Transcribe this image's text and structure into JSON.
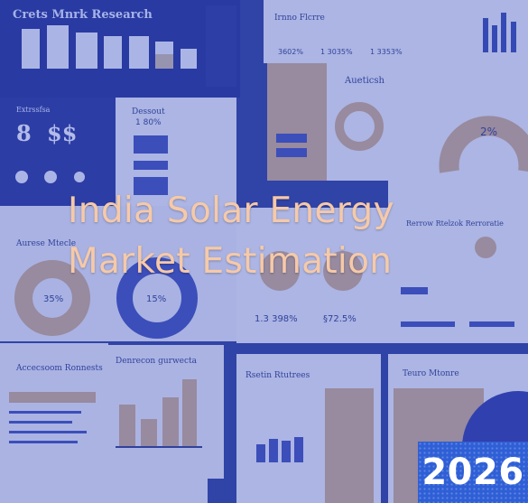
{
  "cover": {
    "title_line1": "India Solar Energy",
    "title_line2": "Market Estimation",
    "year": "2026"
  },
  "background_labels": {
    "panel1_title": "Crets Mnrk Research",
    "panel2_title": "Irnno Flcrre",
    "panel2_stats": [
      "3602%",
      "1 3035%",
      "1 3353%"
    ],
    "panel3_title": "Extrssfsa",
    "panel3_figures": [
      "8",
      "$$"
    ],
    "panel4_title": "Dessout",
    "panel4_value": "1 80%",
    "panel5_title": "Aueticsh",
    "panel5_gauge": "2%",
    "panel6_title": "Aurese Mtecle",
    "panel6_donut1": "35%",
    "panel6_donut2": "15%",
    "panel7_stats": [
      "1.3 398%",
      "§72.5%"
    ],
    "panel8_title": "Rerrow Rtelzok Rerroratie",
    "panel9_title": "Accecsoom Ronnests",
    "panel10_title": "Denrecon gurwecta",
    "panel11_title": "Rsetin Rtutrees",
    "panel12_title": "Teuro Mtonre"
  },
  "colors": {
    "background": "#2d3f9e",
    "title_text": "#f6c9a8",
    "badge": "#2f5fd6"
  }
}
